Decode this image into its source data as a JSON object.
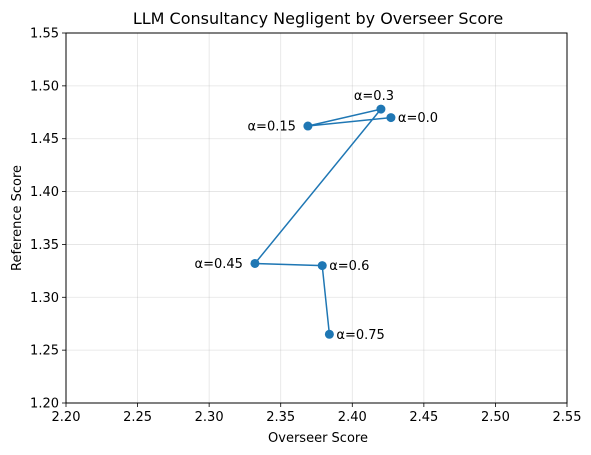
{
  "chart_data": {
    "type": "line",
    "title": "LLM Consultancy Negligent by Overseer Score",
    "xlabel": "Overseer Score",
    "ylabel": "Reference Score",
    "xlim": [
      2.2,
      2.55
    ],
    "ylim": [
      1.2,
      1.55
    ],
    "x_ticks": [
      "2.20",
      "2.25",
      "2.30",
      "2.35",
      "2.40",
      "2.45",
      "2.50",
      "2.55"
    ],
    "y_ticks": [
      "1.20",
      "1.25",
      "1.30",
      "1.35",
      "1.40",
      "1.45",
      "1.50",
      "1.55"
    ],
    "grid": true,
    "color": "#1f77b4",
    "points": [
      {
        "label": "α=0.0",
        "x": 2.427,
        "y": 1.47,
        "label_side": "right"
      },
      {
        "label": "α=0.15",
        "x": 2.369,
        "y": 1.462,
        "label_side": "left"
      },
      {
        "label": "α=0.3",
        "x": 2.42,
        "y": 1.478,
        "label_side": "above"
      },
      {
        "label": "α=0.45",
        "x": 2.332,
        "y": 1.332,
        "label_side": "left"
      },
      {
        "label": "α=0.6",
        "x": 2.379,
        "y": 1.33,
        "label_side": "right"
      },
      {
        "label": "α=0.75",
        "x": 2.384,
        "y": 1.265,
        "label_side": "right"
      }
    ]
  }
}
